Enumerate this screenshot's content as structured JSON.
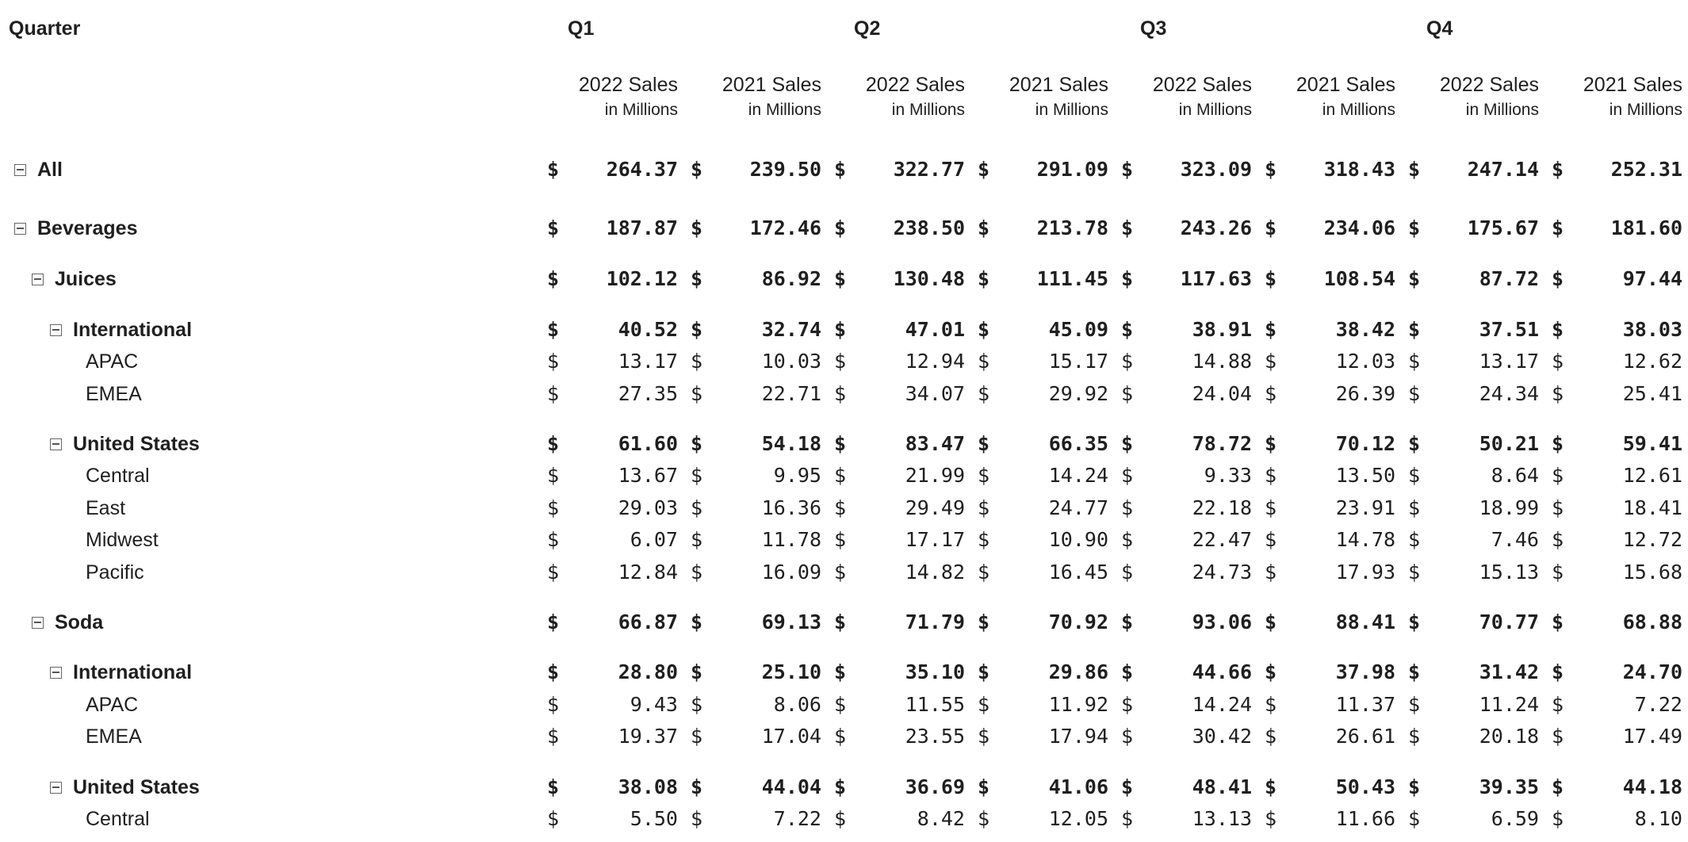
{
  "header": {
    "quarter_label": "Quarter",
    "quarters": [
      "Q1",
      "Q2",
      "Q3",
      "Q4"
    ]
  },
  "column_header": {
    "line1_a": "2022 Sales",
    "line1_b": "2021 Sales",
    "line2": "in Millions"
  },
  "currency_symbol": "$",
  "rows": [
    {
      "label": "All",
      "level": 0,
      "bold": true,
      "toggle": true,
      "values": [
        "264.37",
        "239.50",
        "322.77",
        "291.09",
        "323.09",
        "318.43",
        "247.14",
        "252.31"
      ]
    },
    {
      "label": "Beverages",
      "level": 0,
      "bold": true,
      "toggle": true,
      "values": [
        "187.87",
        "172.46",
        "238.50",
        "213.78",
        "243.26",
        "234.06",
        "175.67",
        "181.60"
      ]
    },
    {
      "label": "Juices",
      "level": 1,
      "bold": true,
      "toggle": true,
      "values": [
        "102.12",
        "86.92",
        "130.48",
        "111.45",
        "117.63",
        "108.54",
        "87.72",
        "97.44"
      ]
    },
    {
      "label": "International",
      "level": 2,
      "bold": true,
      "toggle": true,
      "values": [
        "40.52",
        "32.74",
        "47.01",
        "45.09",
        "38.91",
        "38.42",
        "37.51",
        "38.03"
      ]
    },
    {
      "label": "APAC",
      "level": 3,
      "bold": false,
      "toggle": false,
      "values": [
        "13.17",
        "10.03",
        "12.94",
        "15.17",
        "14.88",
        "12.03",
        "13.17",
        "12.62"
      ]
    },
    {
      "label": "EMEA",
      "level": 3,
      "bold": false,
      "toggle": false,
      "values": [
        "27.35",
        "22.71",
        "34.07",
        "29.92",
        "24.04",
        "26.39",
        "24.34",
        "25.41"
      ]
    },
    {
      "label": "United States",
      "level": 2,
      "bold": true,
      "toggle": true,
      "values": [
        "61.60",
        "54.18",
        "83.47",
        "66.35",
        "78.72",
        "70.12",
        "50.21",
        "59.41"
      ]
    },
    {
      "label": "Central",
      "level": 3,
      "bold": false,
      "toggle": false,
      "values": [
        "13.67",
        "9.95",
        "21.99",
        "14.24",
        "9.33",
        "13.50",
        "8.64",
        "12.61"
      ]
    },
    {
      "label": "East",
      "level": 3,
      "bold": false,
      "toggle": false,
      "values": [
        "29.03",
        "16.36",
        "29.49",
        "24.77",
        "22.18",
        "23.91",
        "18.99",
        "18.41"
      ]
    },
    {
      "label": "Midwest",
      "level": 3,
      "bold": false,
      "toggle": false,
      "values": [
        "6.07",
        "11.78",
        "17.17",
        "10.90",
        "22.47",
        "14.78",
        "7.46",
        "12.72"
      ]
    },
    {
      "label": "Pacific",
      "level": 3,
      "bold": false,
      "toggle": false,
      "values": [
        "12.84",
        "16.09",
        "14.82",
        "16.45",
        "24.73",
        "17.93",
        "15.13",
        "15.68"
      ]
    },
    {
      "label": "Soda",
      "level": 1,
      "bold": true,
      "toggle": true,
      "values": [
        "66.87",
        "69.13",
        "71.79",
        "70.92",
        "93.06",
        "88.41",
        "70.77",
        "68.88"
      ]
    },
    {
      "label": "International",
      "level": 2,
      "bold": true,
      "toggle": true,
      "values": [
        "28.80",
        "25.10",
        "35.10",
        "29.86",
        "44.66",
        "37.98",
        "31.42",
        "24.70"
      ]
    },
    {
      "label": "APAC",
      "level": 3,
      "bold": false,
      "toggle": false,
      "values": [
        "9.43",
        "8.06",
        "11.55",
        "11.92",
        "14.24",
        "11.37",
        "11.24",
        "7.22"
      ]
    },
    {
      "label": "EMEA",
      "level": 3,
      "bold": false,
      "toggle": false,
      "values": [
        "19.37",
        "17.04",
        "23.55",
        "17.94",
        "30.42",
        "26.61",
        "20.18",
        "17.49"
      ]
    },
    {
      "label": "United States",
      "level": 2,
      "bold": true,
      "toggle": true,
      "values": [
        "38.08",
        "44.04",
        "36.69",
        "41.06",
        "48.41",
        "50.43",
        "39.35",
        "44.18"
      ]
    },
    {
      "label": "Central",
      "level": 3,
      "bold": false,
      "toggle": false,
      "values": [
        "5.50",
        "7.22",
        "8.42",
        "12.05",
        "13.13",
        "11.66",
        "6.59",
        "8.10"
      ]
    }
  ]
}
